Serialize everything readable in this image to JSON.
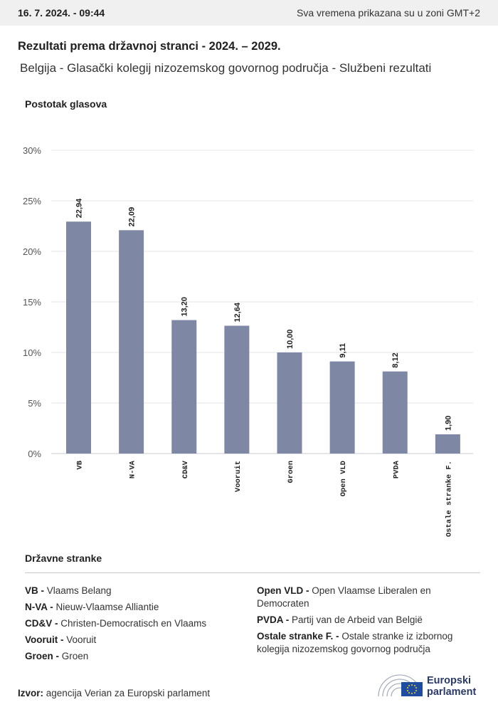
{
  "header": {
    "timestamp": "16. 7. 2024. - 09:44",
    "timezone_note": "Sva vremena prikazana su u zoni GMT+2"
  },
  "title": "Rezultati prema državnoj stranci - 2024. – 2029.",
  "subtitle": "Belgija - Glasački kolegij nizozemskog govornog područja - Službeni rezultati",
  "chart_data": {
    "type": "bar",
    "ylabel": "Postotak glasova",
    "xlabel": "",
    "ylim": [
      0,
      30
    ],
    "yticks": [
      0,
      5,
      10,
      15,
      20,
      25,
      30
    ],
    "ytick_labels": [
      "0%",
      "5%",
      "10%",
      "15%",
      "20%",
      "25%",
      "30%"
    ],
    "categories": [
      "VB",
      "N-VA",
      "CD&V",
      "Vooruit",
      "Groen",
      "Open VLD",
      "PVDA",
      "Ostale stranke F."
    ],
    "values": [
      22.94,
      22.09,
      13.2,
      12.64,
      10.0,
      9.11,
      8.12,
      1.9
    ],
    "value_labels": [
      "22,94",
      "22,09",
      "13,20",
      "12,64",
      "10,00",
      "9,11",
      "8,12",
      "1,90"
    ],
    "bar_color": "#7e88a4",
    "grid": true,
    "legend": "none"
  },
  "legend": {
    "title": "Državne stranke",
    "left": [
      {
        "abbr": "VB -",
        "name": "Vlaams Belang"
      },
      {
        "abbr": "N-VA -",
        "name": "Nieuw-Vlaamse Alliantie"
      },
      {
        "abbr": "CD&V -",
        "name": "Christen-Democratisch en Vlaams"
      },
      {
        "abbr": "Vooruit -",
        "name": "Vooruit"
      },
      {
        "abbr": "Groen -",
        "name": "Groen"
      }
    ],
    "right": [
      {
        "abbr": "Open VLD -",
        "name": "Open Vlaamse Liberalen en Democraten"
      },
      {
        "abbr": "PVDA -",
        "name": "Partij van de Arbeid van België"
      },
      {
        "abbr": "Ostale stranke F. -",
        "name": "Ostale stranke iz izbornog kolegija nizozemskog govornog područja"
      }
    ]
  },
  "source": {
    "label": "Izvor:",
    "text": "agencija Verian za Europski parlament"
  },
  "logo": {
    "line1": "Europski",
    "line2": "parlament",
    "icon": "european-parliament-hemicycle-logo",
    "brand_color": "#2b3a67",
    "flag_color": "#1f4ea1"
  }
}
